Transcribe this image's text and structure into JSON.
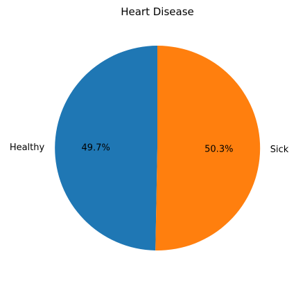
{
  "chart_data": {
    "type": "pie",
    "title": "Heart Disease",
    "slices": [
      {
        "label": "Healthy",
        "value": 49.7,
        "pct_label": "49.7%",
        "color": "#1f77b4"
      },
      {
        "label": "Sick",
        "value": 50.3,
        "pct_label": "50.3%",
        "color": "#ff7f0e"
      }
    ],
    "start_angle_deg": 90,
    "direction": "counterclockwise"
  }
}
